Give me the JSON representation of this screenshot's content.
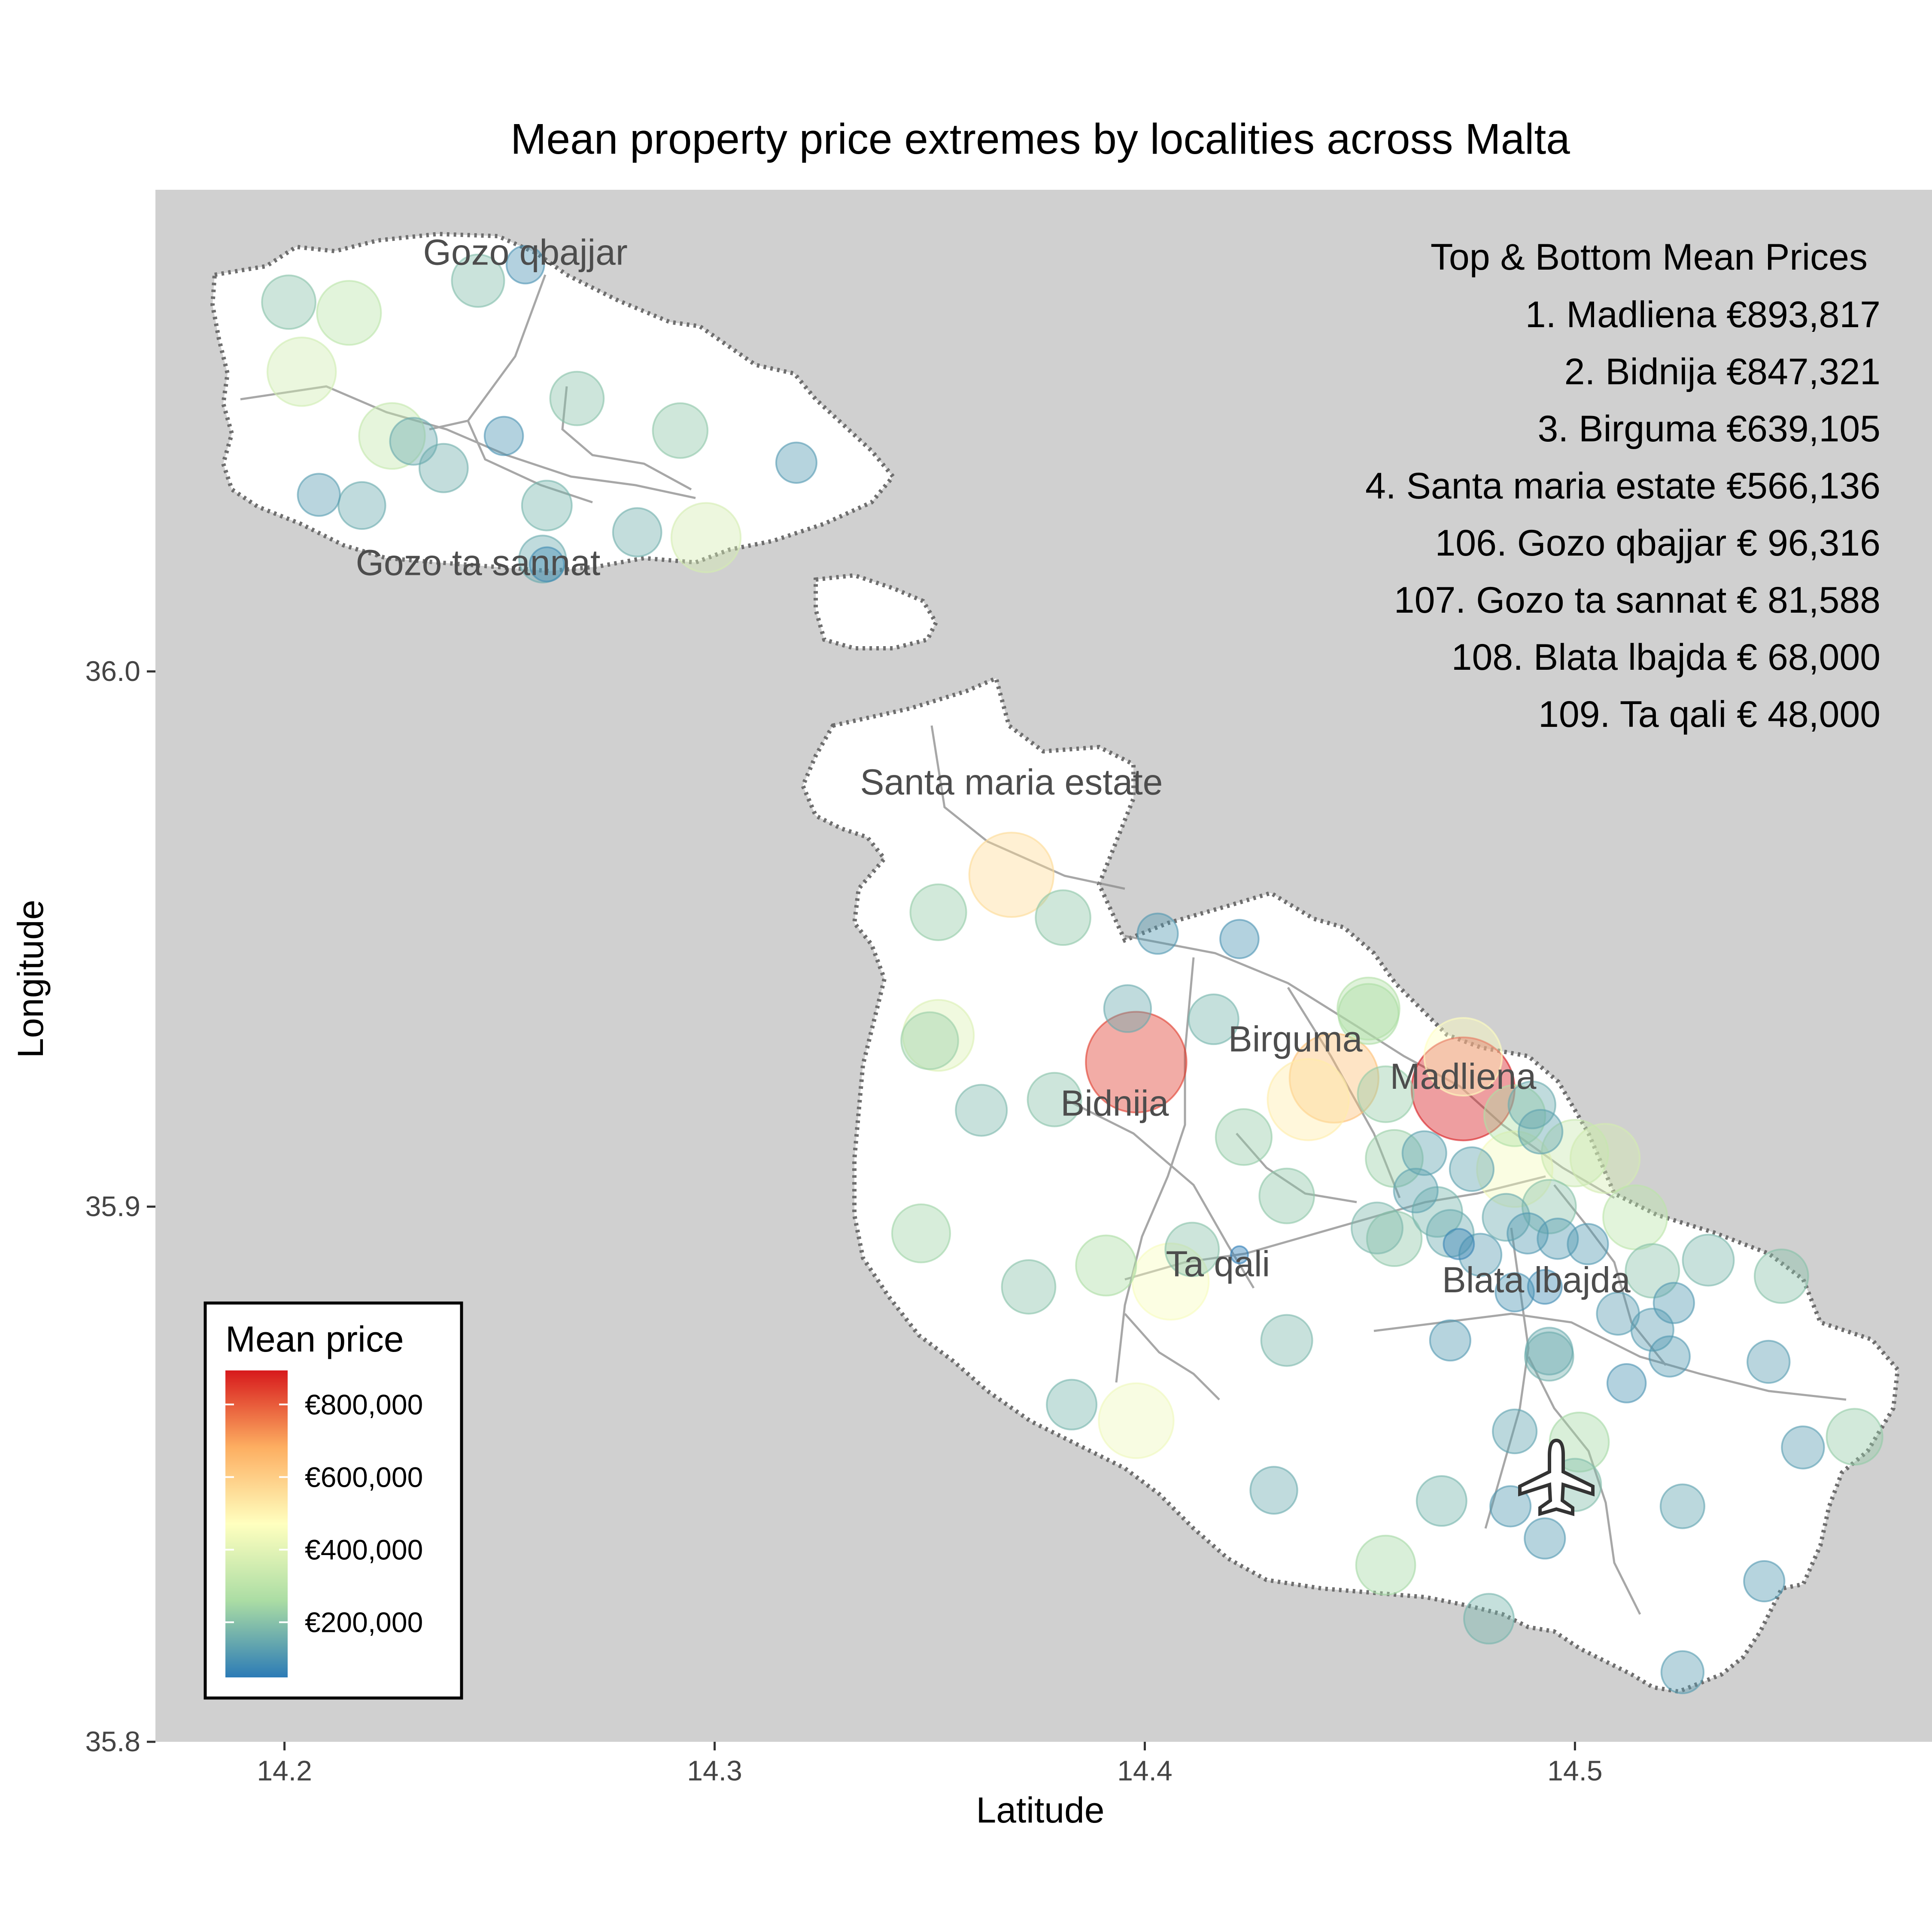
{
  "chart_data": {
    "type": "scatter",
    "title": "Mean property price extremes by localities across Malta",
    "xlabel": "Latitude",
    "ylabel": "Longitude",
    "xlim": [
      14.17,
      14.583
    ],
    "ylim": [
      35.8,
      36.09
    ],
    "x_ticks": [
      {
        "value": 14.2,
        "label": "14.2"
      },
      {
        "value": 14.3,
        "label": "14.3"
      },
      {
        "value": 14.4,
        "label": "14.4"
      },
      {
        "value": 14.5,
        "label": "14.5"
      }
    ],
    "y_ticks": [
      {
        "value": 35.8,
        "label": "35.8"
      },
      {
        "value": 35.9,
        "label": "35.9"
      },
      {
        "value": 36.0,
        "label": "36.0"
      }
    ],
    "background_color": "#d0d0d0",
    "land_color": "#ffffff",
    "color_scale": {
      "title": "Mean price",
      "min": 48000,
      "max": 893817,
      "palette": [
        "#2c7bb6",
        "#abdda4",
        "#ffffbf",
        "#fdae61",
        "#d7191c"
      ],
      "breaks": [
        {
          "value": 200000,
          "label": "€200,000"
        },
        {
          "value": 400000,
          "label": "€400,000"
        },
        {
          "value": 600000,
          "label": "€600,000"
        },
        {
          "value": 800000,
          "label": "€800,000"
        }
      ]
    },
    "annotation": {
      "heading": "Top & Bottom Mean Prices",
      "lines": [
        "1. Madliena €893,817",
        "2. Bidnija €847,321",
        "3. Birguma €639,105",
        "4. Santa maria estate €566,136",
        "106. Gozo qbajjar € 96,316",
        "107. Gozo ta sannat € 81,588",
        "108. Blata lbajda € 68,000",
        "109. Ta qali € 48,000"
      ]
    },
    "labeled_points": [
      {
        "name": "Madliena",
        "x": 14.474,
        "y": 35.922
      },
      {
        "name": "Bidnija",
        "x": 14.393,
        "y": 35.917
      },
      {
        "name": "Birguma",
        "x": 14.435,
        "y": 35.929
      },
      {
        "name": "Santa maria estate",
        "x": 14.369,
        "y": 35.977
      },
      {
        "name": "Gozo qbajjar",
        "x": 14.256,
        "y": 36.076
      },
      {
        "name": "Gozo ta sannat",
        "x": 14.245,
        "y": 36.018
      },
      {
        "name": "Blata lbajda",
        "x": 14.491,
        "y": 35.884
      },
      {
        "name": "Ta qali",
        "x": 14.417,
        "y": 35.887
      }
    ],
    "points": [
      {
        "x": 14.474,
        "y": 35.922,
        "value": 893817
      },
      {
        "x": 14.398,
        "y": 35.927,
        "value": 847321
      },
      {
        "x": 14.444,
        "y": 35.924,
        "value": 639105
      },
      {
        "x": 14.369,
        "y": 35.962,
        "value": 566136
      },
      {
        "x": 14.256,
        "y": 36.076,
        "value": 96316
      },
      {
        "x": 14.261,
        "y": 36.02,
        "value": 81588
      },
      {
        "x": 14.473,
        "y": 35.893,
        "value": 68000
      },
      {
        "x": 14.422,
        "y": 35.891,
        "value": 48000
      },
      {
        "x": 14.438,
        "y": 35.92,
        "value": 520000
      },
      {
        "x": 14.474,
        "y": 35.928,
        "value": 470000
      },
      {
        "x": 14.406,
        "y": 35.886,
        "value": 450000
      },
      {
        "x": 14.398,
        "y": 35.86,
        "value": 430000
      },
      {
        "x": 14.352,
        "y": 35.932,
        "value": 380000
      },
      {
        "x": 14.486,
        "y": 35.907,
        "value": 440000
      },
      {
        "x": 14.507,
        "y": 35.909,
        "value": 360000
      },
      {
        "x": 14.5,
        "y": 35.91,
        "value": 330000
      },
      {
        "x": 14.204,
        "y": 36.056,
        "value": 350000
      },
      {
        "x": 14.225,
        "y": 36.044,
        "value": 320000
      },
      {
        "x": 14.298,
        "y": 36.025,
        "value": 360000
      },
      {
        "x": 14.215,
        "y": 36.067,
        "value": 300000
      },
      {
        "x": 14.514,
        "y": 35.898,
        "value": 300000
      },
      {
        "x": 14.452,
        "y": 35.937,
        "value": 280000
      },
      {
        "x": 14.486,
        "y": 35.917,
        "value": 270000
      },
      {
        "x": 14.391,
        "y": 35.889,
        "value": 260000
      },
      {
        "x": 14.348,
        "y": 35.895,
        "value": 240000
      },
      {
        "x": 14.201,
        "y": 36.069,
        "value": 200000
      },
      {
        "x": 14.245,
        "y": 36.073,
        "value": 190000
      },
      {
        "x": 14.268,
        "y": 36.051,
        "value": 200000
      },
      {
        "x": 14.292,
        "y": 36.045,
        "value": 210000
      },
      {
        "x": 14.218,
        "y": 36.031,
        "value": 150000
      },
      {
        "x": 14.208,
        "y": 36.033,
        "value": 120000
      },
      {
        "x": 14.237,
        "y": 36.038,
        "value": 160000
      },
      {
        "x": 14.23,
        "y": 36.043,
        "value": 150000
      },
      {
        "x": 14.261,
        "y": 36.031,
        "value": 170000
      },
      {
        "x": 14.282,
        "y": 36.026,
        "value": 160000
      },
      {
        "x": 14.26,
        "y": 36.021,
        "value": 150000
      },
      {
        "x": 14.319,
        "y": 36.039,
        "value": 110000
      },
      {
        "x": 14.251,
        "y": 36.044,
        "value": 100000
      },
      {
        "x": 14.352,
        "y": 35.955,
        "value": 220000
      },
      {
        "x": 14.381,
        "y": 35.954,
        "value": 210000
      },
      {
        "x": 14.403,
        "y": 35.951,
        "value": 110000
      },
      {
        "x": 14.422,
        "y": 35.95,
        "value": 100000
      },
      {
        "x": 14.396,
        "y": 35.937,
        "value": 150000
      },
      {
        "x": 14.416,
        "y": 35.935,
        "value": 170000
      },
      {
        "x": 14.35,
        "y": 35.931,
        "value": 230000
      },
      {
        "x": 14.362,
        "y": 35.918,
        "value": 180000
      },
      {
        "x": 14.379,
        "y": 35.92,
        "value": 200000
      },
      {
        "x": 14.452,
        "y": 35.936,
        "value": 260000
      },
      {
        "x": 14.456,
        "y": 35.921,
        "value": 220000
      },
      {
        "x": 14.423,
        "y": 35.913,
        "value": 220000
      },
      {
        "x": 14.458,
        "y": 35.909,
        "value": 230000
      },
      {
        "x": 14.433,
        "y": 35.902,
        "value": 210000
      },
      {
        "x": 14.463,
        "y": 35.903,
        "value": 130000
      },
      {
        "x": 14.476,
        "y": 35.907,
        "value": 130000
      },
      {
        "x": 14.49,
        "y": 35.919,
        "value": 150000
      },
      {
        "x": 14.492,
        "y": 35.914,
        "value": 130000
      },
      {
        "x": 14.494,
        "y": 35.9,
        "value": 200000
      },
      {
        "x": 14.484,
        "y": 35.898,
        "value": 150000
      },
      {
        "x": 14.468,
        "y": 35.899,
        "value": 170000
      },
      {
        "x": 14.471,
        "y": 35.895,
        "value": 150000
      },
      {
        "x": 14.454,
        "y": 35.896,
        "value": 180000
      },
      {
        "x": 14.458,
        "y": 35.894,
        "value": 210000
      },
      {
        "x": 14.478,
        "y": 35.891,
        "value": 120000
      },
      {
        "x": 14.489,
        "y": 35.895,
        "value": 110000
      },
      {
        "x": 14.496,
        "y": 35.894,
        "value": 110000
      },
      {
        "x": 14.503,
        "y": 35.893,
        "value": 110000
      },
      {
        "x": 14.486,
        "y": 35.884,
        "value": 100000
      },
      {
        "x": 14.493,
        "y": 35.885,
        "value": 80000
      },
      {
        "x": 14.51,
        "y": 35.88,
        "value": 120000
      },
      {
        "x": 14.518,
        "y": 35.888,
        "value": 200000
      },
      {
        "x": 14.523,
        "y": 35.882,
        "value": 110000
      },
      {
        "x": 14.518,
        "y": 35.877,
        "value": 120000
      },
      {
        "x": 14.531,
        "y": 35.89,
        "value": 180000
      },
      {
        "x": 14.548,
        "y": 35.887,
        "value": 200000
      },
      {
        "x": 14.494,
        "y": 35.873,
        "value": 150000
      },
      {
        "x": 14.494,
        "y": 35.872,
        "value": 160000
      },
      {
        "x": 14.471,
        "y": 35.875,
        "value": 110000
      },
      {
        "x": 14.522,
        "y": 35.872,
        "value": 110000
      },
      {
        "x": 14.545,
        "y": 35.871,
        "value": 120000
      },
      {
        "x": 14.512,
        "y": 35.867,
        "value": 100000
      },
      {
        "x": 14.433,
        "y": 35.875,
        "value": 180000
      },
      {
        "x": 14.383,
        "y": 35.863,
        "value": 170000
      },
      {
        "x": 14.373,
        "y": 35.885,
        "value": 200000
      },
      {
        "x": 14.43,
        "y": 35.847,
        "value": 150000
      },
      {
        "x": 14.469,
        "y": 35.845,
        "value": 170000
      },
      {
        "x": 14.486,
        "y": 35.858,
        "value": 130000
      },
      {
        "x": 14.501,
        "y": 35.856,
        "value": 250000
      },
      {
        "x": 14.5,
        "y": 35.848,
        "value": 190000
      },
      {
        "x": 14.485,
        "y": 35.844,
        "value": 110000
      },
      {
        "x": 14.493,
        "y": 35.838,
        "value": 110000
      },
      {
        "x": 14.525,
        "y": 35.844,
        "value": 130000
      },
      {
        "x": 14.553,
        "y": 35.855,
        "value": 120000
      },
      {
        "x": 14.565,
        "y": 35.857,
        "value": 220000
      },
      {
        "x": 14.456,
        "y": 35.833,
        "value": 250000
      },
      {
        "x": 14.48,
        "y": 35.823,
        "value": 170000
      },
      {
        "x": 14.525,
        "y": 35.813,
        "value": 120000
      },
      {
        "x": 14.544,
        "y": 35.83,
        "value": 110000
      },
      {
        "x": 14.465,
        "y": 35.91,
        "value": 130000
      },
      {
        "x": 14.411,
        "y": 35.892,
        "value": 200000
      }
    ]
  }
}
